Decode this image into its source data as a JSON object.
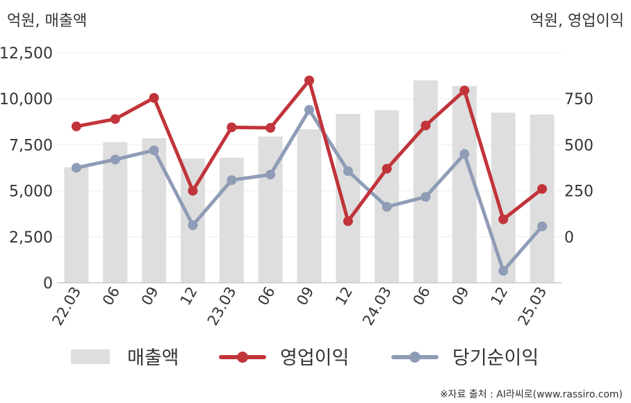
{
  "chart_data": {
    "type": "bar+line",
    "left_unit_label": "억원, 매출액",
    "right_unit_label": "억원, 영업이익",
    "categories": [
      "22.03",
      "06",
      "09",
      "12",
      "23.03",
      "06",
      "09",
      "12",
      "24.03",
      "06",
      "09",
      "12",
      "25.03"
    ],
    "left_axis": {
      "min": 0,
      "max": 12500,
      "ticks": [
        "0",
        "2,500",
        "5,000",
        "7,500",
        "10,000",
        "12,500"
      ],
      "tick_values": [
        0,
        2500,
        5000,
        7500,
        10000,
        12500
      ]
    },
    "right_axis": {
      "min": -250,
      "max": 1000,
      "ticks": [
        "0",
        "250",
        "500",
        "750"
      ],
      "tick_values": [
        0,
        250,
        500,
        750
      ]
    },
    "series": [
      {
        "name": "매출액",
        "type": "bar",
        "axis": "left",
        "color": "#dedede",
        "values": [
          6280,
          7650,
          7850,
          6750,
          6800,
          7950,
          8350,
          9180,
          9380,
          11000,
          10700,
          9250,
          9150
        ]
      },
      {
        "name": "영업이익",
        "type": "line",
        "axis": "right",
        "color": "#c1343a",
        "values": [
          600,
          640,
          755,
          250,
          595,
          592,
          850,
          85,
          370,
          605,
          795,
          95,
          260
        ]
      },
      {
        "name": "당기순이익",
        "type": "line",
        "axis": "right",
        "color": "#8f9cb6",
        "values": [
          375,
          420,
          470,
          63,
          308,
          338,
          690,
          357,
          163,
          217,
          450,
          -185,
          57
        ]
      }
    ],
    "grid": true,
    "legend_position": "bottom"
  },
  "footer": {
    "source": "※자료 출처 : AI라씨로(www.rassiro.com)"
  }
}
